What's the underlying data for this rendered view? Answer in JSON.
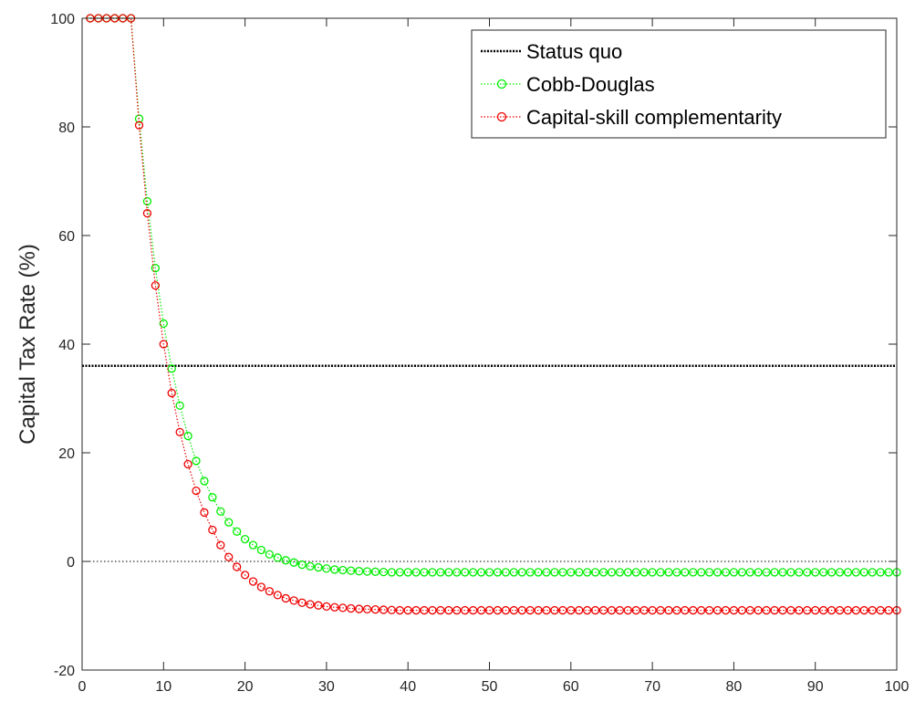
{
  "chart_data": {
    "type": "line",
    "title": "",
    "xlabel": "",
    "ylabel": "Capital Tax Rate (%)",
    "xlim": [
      0,
      100
    ],
    "ylim": [
      -20,
      100
    ],
    "xticks": [
      0,
      10,
      20,
      30,
      40,
      50,
      60,
      70,
      80,
      90,
      100
    ],
    "yticks": [
      -20,
      0,
      20,
      40,
      60,
      80,
      100
    ],
    "grid": false,
    "legend_position": "top-right",
    "reference_lines": [
      {
        "y": 0,
        "style": "dotted",
        "color": "#000000"
      }
    ],
    "series": [
      {
        "name": "Status quo",
        "kind": "hline",
        "y": 36,
        "color": "#000000",
        "style": "dotted-thick"
      },
      {
        "name": "Cobb-Douglas",
        "kind": "markers",
        "color": "#00ee00",
        "marker": "circle",
        "x_start": 1,
        "x_step": 1,
        "values": [
          100,
          100,
          100,
          100,
          100,
          100,
          81.5,
          66.3,
          54.0,
          43.8,
          35.5,
          28.7,
          23.1,
          18.5,
          14.8,
          11.8,
          9.2,
          7.2,
          5.5,
          4.1,
          3.0,
          2.1,
          1.3,
          0.7,
          0.2,
          -0.2,
          -0.6,
          -0.9,
          -1.1,
          -1.3,
          -1.5,
          -1.6,
          -1.7,
          -1.8,
          -1.85,
          -1.9,
          -1.95,
          -2.0,
          -2.0,
          -2.0,
          -2.0,
          -2.0,
          -2.0,
          -2.0,
          -2.0,
          -2.0,
          -2.0,
          -2.0,
          -2.0,
          -2.0,
          -2.0,
          -2.0,
          -2.0,
          -2.0,
          -2.0,
          -2.0,
          -2.0,
          -2.0,
          -2.0,
          -2.0,
          -2.0,
          -2.0,
          -2.0,
          -2.0,
          -2.0,
          -2.0,
          -2.0,
          -2.0,
          -2.0,
          -2.0,
          -2.0,
          -2.0,
          -2.0,
          -2.0,
          -2.0,
          -2.0,
          -2.0,
          -2.0,
          -2.0,
          -2.0,
          -2.0,
          -2.0,
          -2.0,
          -2.0,
          -2.0,
          -2.0,
          -2.0,
          -2.0,
          -2.0,
          -2.0,
          -2.0,
          -2.0,
          -2.0,
          -2.0,
          -2.0,
          -2.0,
          -2.0,
          -2.0,
          -2.0,
          -2.0
        ]
      },
      {
        "name": "Capital-skill complementarity",
        "kind": "markers",
        "color": "#ee0000",
        "marker": "circle",
        "x_start": 1,
        "x_step": 1,
        "values": [
          100,
          100,
          100,
          100,
          100,
          100,
          80.3,
          64.1,
          50.8,
          40.0,
          31.0,
          23.8,
          17.9,
          13.0,
          9.0,
          5.8,
          3.0,
          0.8,
          -1.0,
          -2.5,
          -3.7,
          -4.7,
          -5.5,
          -6.2,
          -6.8,
          -7.2,
          -7.6,
          -7.9,
          -8.1,
          -8.3,
          -8.45,
          -8.55,
          -8.65,
          -8.75,
          -8.8,
          -8.85,
          -8.9,
          -8.95,
          -9.0,
          -9.0,
          -9.0,
          -9.0,
          -9.0,
          -9.0,
          -9.0,
          -9.0,
          -9.0,
          -9.0,
          -9.0,
          -9.0,
          -9.0,
          -9.0,
          -9.0,
          -9.0,
          -9.0,
          -9.0,
          -9.0,
          -9.0,
          -9.0,
          -9.0,
          -9.0,
          -9.0,
          -9.0,
          -9.0,
          -9.0,
          -9.0,
          -9.0,
          -9.0,
          -9.0,
          -9.0,
          -9.0,
          -9.0,
          -9.0,
          -9.0,
          -9.0,
          -9.0,
          -9.0,
          -9.0,
          -9.0,
          -9.0,
          -9.0,
          -9.0,
          -9.0,
          -9.0,
          -9.0,
          -9.0,
          -9.0,
          -9.0,
          -9.0,
          -9.0,
          -9.0,
          -9.0,
          -9.0,
          -9.0,
          -9.0,
          -9.0,
          -9.0,
          -9.0,
          -9.0,
          -9.0
        ]
      }
    ]
  }
}
